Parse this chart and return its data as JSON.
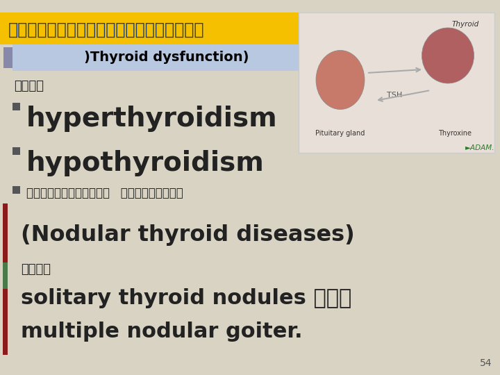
{
  "background_color": "#d9d3c3",
  "title_thai": "โรคความผดปกตของตอมธย",
  "title_bg_color": "#f5c000",
  "title_text_color": "#1a3a6b",
  "subtitle_text": ")Thyroid dysfunction)",
  "subtitle_bg_color": "#b8c8e0",
  "subtitle_text_color": "#000000",
  "line1_thai": "ไดแก",
  "line2_text": "hyperthyroidism",
  "line3_text": "hypothyroidism",
  "line4_thai": "และโรคกอนของ   ตอมไทรอยด",
  "line5_text": "(Nodular thyroid diseases)",
  "line6_thai": "ไดแก",
  "line7_text": "solitary thyroid nodules และ",
  "line8_text": "multiple nodular goiter.",
  "bullet_color": "#555555",
  "bar_red": "#8b1a1a",
  "bar_green": "#4a7a4a",
  "page_number": "54",
  "font_color_main": "#222222",
  "adam_color": "#2a7a2a",
  "img_bg": "#e8e0d8",
  "img_border": "#cccccc"
}
